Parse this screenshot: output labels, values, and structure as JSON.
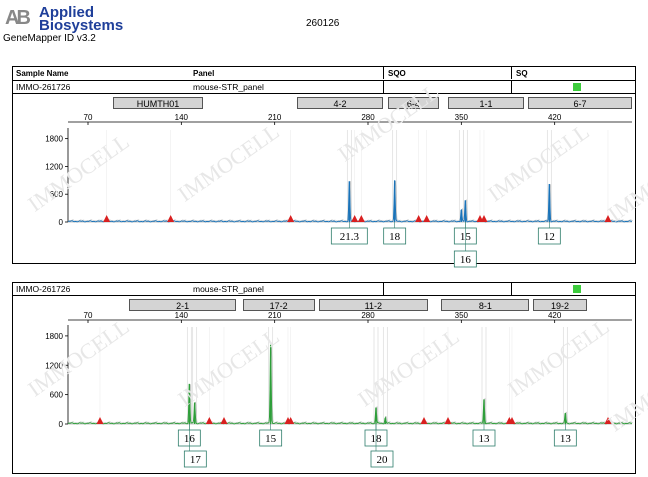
{
  "header": {
    "logo_mark": "AB",
    "brand_line1": "Applied",
    "brand_line2": "Biosystems",
    "software": "GeneMapper ID v3.2",
    "run_id": "260126"
  },
  "columns": {
    "sample_name": "Sample Name",
    "panel": "Panel",
    "sqo": "SQO",
    "sq": "SQ"
  },
  "watermark": "IMMOCELL",
  "colors": {
    "blue": "#1a73b8",
    "green": "#2e9e3a",
    "peak_marker": "#d92020",
    "quality_square": "#3dcc3d"
  },
  "chart_data": [
    {
      "type": "line",
      "sample_name": "IMMO-261726",
      "panel": "mouse-STR_panel",
      "dye": "blue",
      "x_range": [
        55,
        478
      ],
      "y_range": [
        0,
        1900
      ],
      "x_ticks": [
        70,
        140,
        210,
        280,
        350,
        420
      ],
      "y_ticks": [
        0,
        600,
        1200,
        1800
      ],
      "markers": [
        {
          "label": "HUMTH01",
          "start": 89,
          "end": 156
        },
        {
          "label": "4-2",
          "start": 227,
          "end": 291
        },
        {
          "label": "6-4",
          "start": 295,
          "end": 333
        },
        {
          "label": "1-1",
          "start": 340,
          "end": 397
        },
        {
          "label": "6-7",
          "start": 400,
          "end": 478
        }
      ],
      "peaks": [
        {
          "x": 266,
          "height": 880,
          "alleles": [
            "21.3"
          ]
        },
        {
          "x": 300,
          "height": 900,
          "alleles": [
            "18"
          ]
        },
        {
          "x": 350,
          "height": 260,
          "alleles": []
        },
        {
          "x": 353,
          "height": 470,
          "alleles": [
            "15",
            "16"
          ]
        },
        {
          "x": 416,
          "height": 820,
          "alleles": [
            "12"
          ]
        }
      ],
      "size_marks": [
        84,
        132,
        222,
        270,
        275,
        318,
        324,
        364,
        367,
        460
      ]
    },
    {
      "type": "line",
      "sample_name": "IMMO-261726",
      "panel": "mouse-STR_panel",
      "dye": "green",
      "x_range": [
        55,
        478
      ],
      "y_range": [
        0,
        1900
      ],
      "x_ticks": [
        70,
        140,
        210,
        280,
        350,
        420
      ],
      "y_ticks": [
        0,
        600,
        1200,
        1800
      ],
      "markers": [
        {
          "label": "2-1",
          "start": 101,
          "end": 181
        },
        {
          "label": "17-2",
          "start": 186,
          "end": 240
        },
        {
          "label": "11-2",
          "start": 243,
          "end": 325
        },
        {
          "label": "8-1",
          "start": 335,
          "end": 401
        },
        {
          "label": "19-2",
          "start": 404,
          "end": 444
        }
      ],
      "peaks": [
        {
          "x": 146,
          "height": 820,
          "alleles": [
            "16",
            "17"
          ]
        },
        {
          "x": 150,
          "height": 440,
          "alleles": []
        },
        {
          "x": 207,
          "height": 1620,
          "alleles": [
            "15"
          ]
        },
        {
          "x": 286,
          "height": 330,
          "alleles": [
            "18",
            "20"
          ]
        },
        {
          "x": 293,
          "height": 120,
          "alleles": []
        },
        {
          "x": 367,
          "height": 490,
          "alleles": [
            "13"
          ]
        },
        {
          "x": 428,
          "height": 220,
          "alleles": [
            "13"
          ]
        }
      ],
      "size_marks": [
        79,
        161,
        172,
        220,
        222,
        322,
        340,
        386,
        388,
        460
      ]
    }
  ]
}
